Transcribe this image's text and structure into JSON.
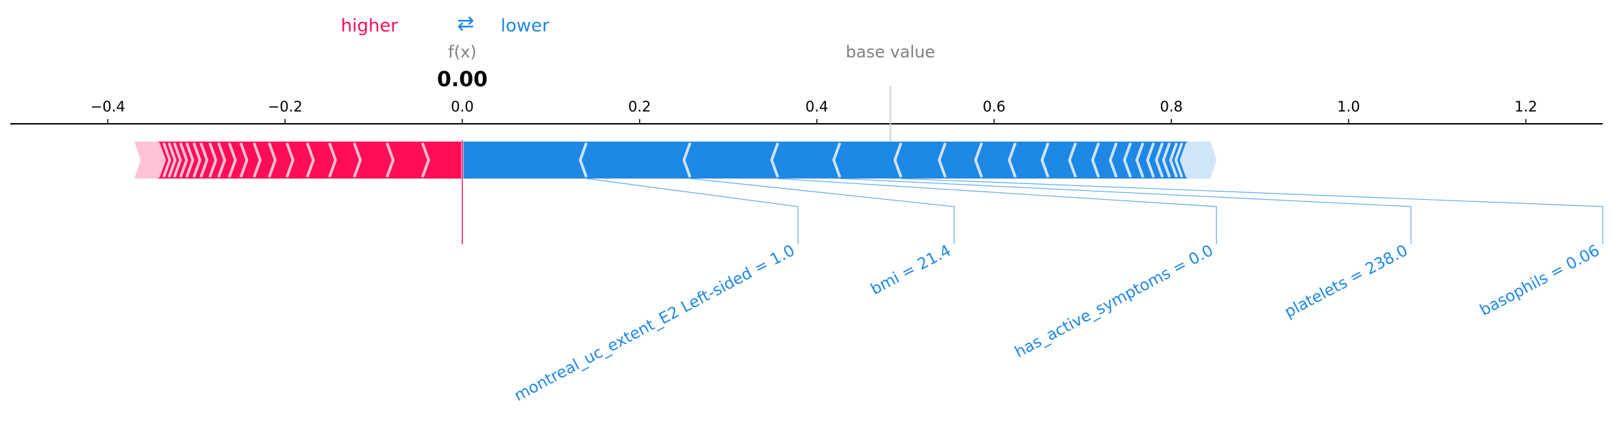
{
  "legend": {
    "higher_label": "higher",
    "lower_label": "lower",
    "arrows_glyph": "⇄",
    "higher_color": "#ff0d57",
    "lower_color": "#1e88e5"
  },
  "labels": {
    "fx_label": "f(x)",
    "fx_value": "0.00",
    "base_label": "base value"
  },
  "chart_data": {
    "type": "force",
    "xlim": [
      -0.5,
      1.28
    ],
    "ticks": [
      -0.4,
      -0.2,
      0.0,
      0.2,
      0.4,
      0.6,
      0.8,
      1.0,
      1.2
    ],
    "tick_labels": [
      "−0.4",
      "−0.2",
      "0.0",
      "0.2",
      "0.4",
      "0.6",
      "0.8",
      "1.0",
      "1.2"
    ],
    "fx": 0.0,
    "base_value": 0.483,
    "positive_bar": {
      "from": -0.37,
      "to": 0.0,
      "separators": [
        -0.343,
        -0.337,
        -0.331,
        -0.325,
        -0.318,
        -0.311,
        -0.303,
        -0.295,
        -0.285,
        -0.275,
        -0.263,
        -0.25,
        -0.235,
        -0.218,
        -0.198,
        -0.175,
        -0.15,
        -0.122,
        -0.085,
        -0.045
      ]
    },
    "negative_bar": {
      "from": 0.0,
      "to": 0.851,
      "separators": [
        0.14,
        0.257,
        0.356,
        0.426,
        0.495,
        0.545,
        0.586,
        0.624,
        0.661,
        0.692,
        0.718,
        0.738,
        0.754,
        0.768,
        0.78,
        0.79,
        0.798,
        0.806,
        0.812,
        0.818
      ]
    },
    "positive_features": [],
    "negative_features": [
      {
        "label": "montreal_uc_extent_E2 Left-sided = 1.0",
        "from": 0.0,
        "to": 0.14
      },
      {
        "label": "bmi = 21.4",
        "from": 0.14,
        "to": 0.257
      },
      {
        "label": "has_active_symptoms = 0.0",
        "from": 0.257,
        "to": 0.356
      },
      {
        "label": "platelets = 238.0",
        "from": 0.356,
        "to": 0.426
      },
      {
        "label": "basophils = 0.06",
        "from": 0.426,
        "to": 0.495
      }
    ]
  }
}
